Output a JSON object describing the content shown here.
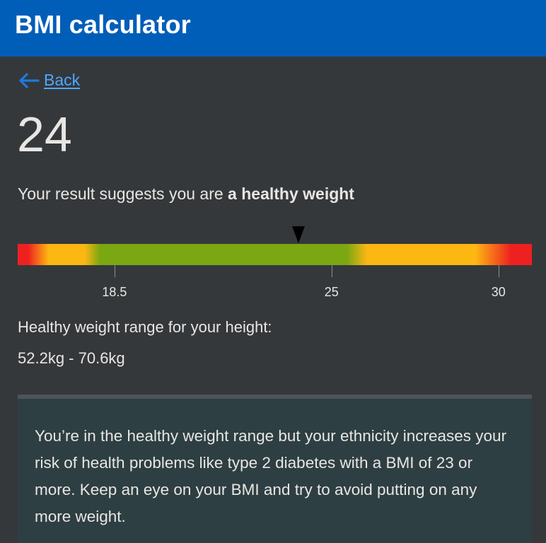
{
  "header": {
    "title": "BMI calculator"
  },
  "nav": {
    "back_label": "Back",
    "back_icon": "arrow-left-icon"
  },
  "result": {
    "bmi": "24",
    "bmi_value": 24,
    "summary_prefix": "Your result suggests you are ",
    "summary_category": "a healthy weight"
  },
  "gauge": {
    "scale_min": 15.6,
    "scale_max": 31,
    "marker_value": 24,
    "ticks": [
      {
        "value": 18.5,
        "label": "18.5"
      },
      {
        "value": 25,
        "label": "25"
      },
      {
        "value": 30,
        "label": "30"
      }
    ],
    "colors": {
      "underweight_obese": "#ee2020",
      "overweight": "#fdb713",
      "healthy": "#7aa712"
    }
  },
  "healthy_range": {
    "heading": "Healthy weight range for your height:",
    "value": "52.2kg - 70.6kg"
  },
  "advice": {
    "text": "You’re in the healthy weight range but your ethnicity increases your risk of health problems like type 2 diabetes with a BMI of 23 or more. Keep an eye on your BMI and try to avoid putting on any more weight."
  },
  "colors": {
    "header_bg": "#005eb8",
    "page_bg": "#35383b",
    "link": "#4ea7ff",
    "advice_bg": "#2e3f43"
  }
}
